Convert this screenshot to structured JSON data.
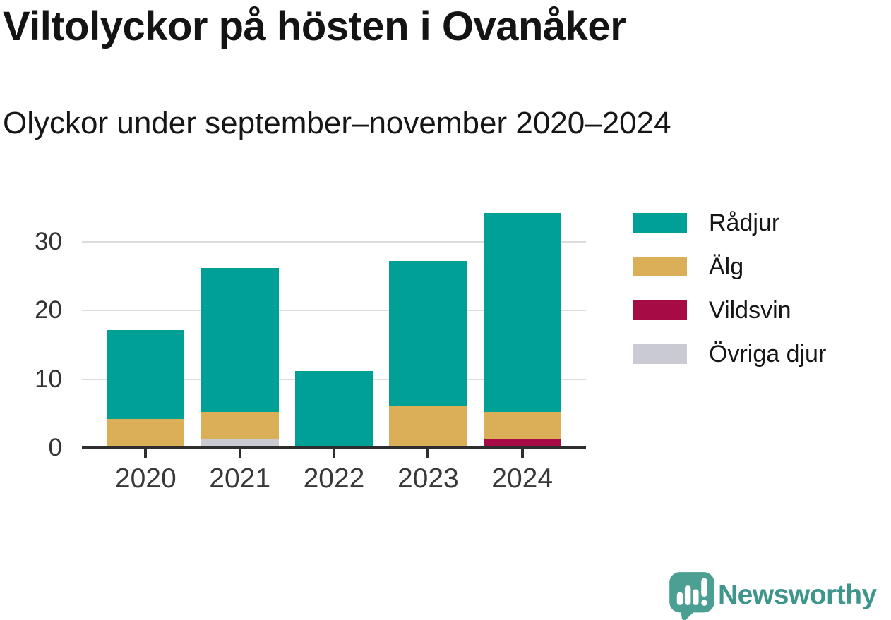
{
  "title": "Viltolyckor på hösten i Ovanåker",
  "subtitle": "Olyckor under september–november 2020–2024",
  "chart_data": {
    "type": "bar",
    "stacked": true,
    "title": "Viltolyckor på hösten i Ovanåker",
    "subtitle": "Olyckor under september–november 2020–2024",
    "categories": [
      "2020",
      "2021",
      "2022",
      "2023",
      "2024"
    ],
    "series": [
      {
        "name": "Rådjur",
        "color": "#00A097",
        "values": [
          13,
          21,
          11,
          21,
          29
        ]
      },
      {
        "name": "Älg",
        "color": "#DAAF57",
        "values": [
          4,
          4,
          0,
          6,
          4
        ]
      },
      {
        "name": "Vildsvin",
        "color": "#A60B45",
        "values": [
          0,
          0,
          0,
          0,
          1
        ]
      },
      {
        "name": "Övriga djur",
        "color": "#CACAD2",
        "values": [
          0,
          1,
          0,
          0,
          0
        ]
      }
    ],
    "stack_order_bottom_to_top": [
      "Övriga djur",
      "Vildsvin",
      "Älg",
      "Rådjur"
    ],
    "totals": [
      17,
      26,
      11,
      27,
      34
    ],
    "xlabel": "",
    "ylabel": "",
    "yticks": [
      0,
      10,
      20,
      30
    ],
    "ylim": [
      0,
      34
    ],
    "grid": "horizontal",
    "legend_position": "right"
  },
  "legend": {
    "items": [
      {
        "label": "Rådjur",
        "color": "#00A097"
      },
      {
        "label": "Älg",
        "color": "#DAAF57"
      },
      {
        "label": "Vildsvin",
        "color": "#A60B45"
      },
      {
        "label": "Övriga djur",
        "color": "#CACAD2"
      }
    ]
  },
  "branding": {
    "name": "Newsworthy",
    "icon": "newsworthy-speech-bubble-chart-icon",
    "icon_color": "#4BA093",
    "text_color": "#3E958B"
  },
  "colors": {
    "background": "#FFFFFF",
    "axis": "#2E2E2E",
    "gridline": "#DCDCDC",
    "title_text": "#141414",
    "tick_label_text": "#383838"
  }
}
